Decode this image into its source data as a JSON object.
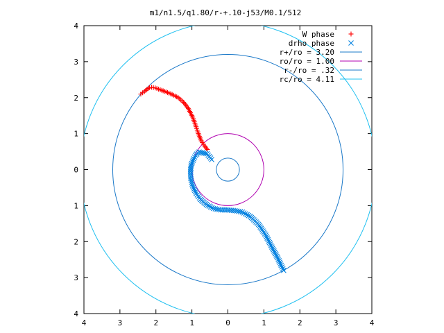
{
  "chart_data": {
    "type": "scatter",
    "title": "m1/n1.5/q1.80/r-+.10-j53/M0.1/512",
    "xlim": [
      -4,
      4
    ],
    "ylim": [
      -4,
      4
    ],
    "x_ticks": [
      -4,
      -3,
      -2,
      -1,
      0,
      1,
      2,
      3,
      4
    ],
    "y_ticks": [
      -4,
      -3,
      -2,
      -1,
      0,
      1,
      2,
      3,
      4
    ],
    "x_tick_labels": [
      "4",
      "3",
      "2",
      "1",
      "0",
      "1",
      "2",
      "3",
      "4"
    ],
    "y_tick_labels": [
      "4",
      "3",
      "2",
      "1",
      "0",
      "1",
      "2",
      "3",
      "4"
    ],
    "grid": false,
    "legend_position": "top-right",
    "series": [
      {
        "name": "W phase",
        "marker": "plus",
        "color": "#ff0000",
        "points": [
          [
            -2.42,
            2.1
          ],
          [
            -2.32,
            2.17
          ],
          [
            -2.25,
            2.23
          ],
          [
            -2.18,
            2.28
          ],
          [
            -2.12,
            2.29
          ],
          [
            -2.02,
            2.27
          ],
          [
            -1.88,
            2.22
          ],
          [
            -1.72,
            2.16
          ],
          [
            -1.55,
            2.09
          ],
          [
            -1.38,
            2.0
          ],
          [
            -1.23,
            1.87
          ],
          [
            -1.1,
            1.7
          ],
          [
            -0.98,
            1.46
          ],
          [
            -0.9,
            1.24
          ],
          [
            -0.82,
            1.0
          ],
          [
            -0.74,
            0.8
          ],
          [
            -0.65,
            0.66
          ],
          [
            -0.57,
            0.56
          ]
        ]
      },
      {
        "name": "drho phase",
        "marker": "cross",
        "color": "#0080e0",
        "points": [
          [
            -0.45,
            0.28
          ],
          [
            -0.58,
            0.44
          ],
          [
            -0.8,
            0.49
          ],
          [
            -0.9,
            0.4
          ],
          [
            -0.95,
            0.3
          ],
          [
            -1.02,
            0.13
          ],
          [
            -1.04,
            -0.05
          ],
          [
            -1.03,
            -0.25
          ],
          [
            -0.98,
            -0.45
          ],
          [
            -0.88,
            -0.66
          ],
          [
            -0.76,
            -0.83
          ],
          [
            -0.6,
            -0.97
          ],
          [
            -0.4,
            -1.08
          ],
          [
            -0.2,
            -1.12
          ],
          [
            0.0,
            -1.12
          ],
          [
            0.2,
            -1.14
          ],
          [
            0.4,
            -1.18
          ],
          [
            0.62,
            -1.3
          ],
          [
            0.85,
            -1.52
          ],
          [
            1.05,
            -1.82
          ],
          [
            1.22,
            -2.15
          ],
          [
            1.38,
            -2.45
          ],
          [
            1.48,
            -2.66
          ],
          [
            1.55,
            -2.8
          ]
        ]
      }
    ],
    "circles": [
      {
        "name": "r+/ro = 3.20",
        "radius": 3.2,
        "color": "#1a78c8"
      },
      {
        "name": "ro/ro = 1.00",
        "radius": 1.0,
        "color": "#b000b0"
      },
      {
        "name": "r-/ro = .32",
        "radius": 0.32,
        "color": "#1a78c8"
      },
      {
        "name": "rc/ro = 4.11",
        "radius": 4.11,
        "color": "#20c0f0"
      }
    ]
  }
}
